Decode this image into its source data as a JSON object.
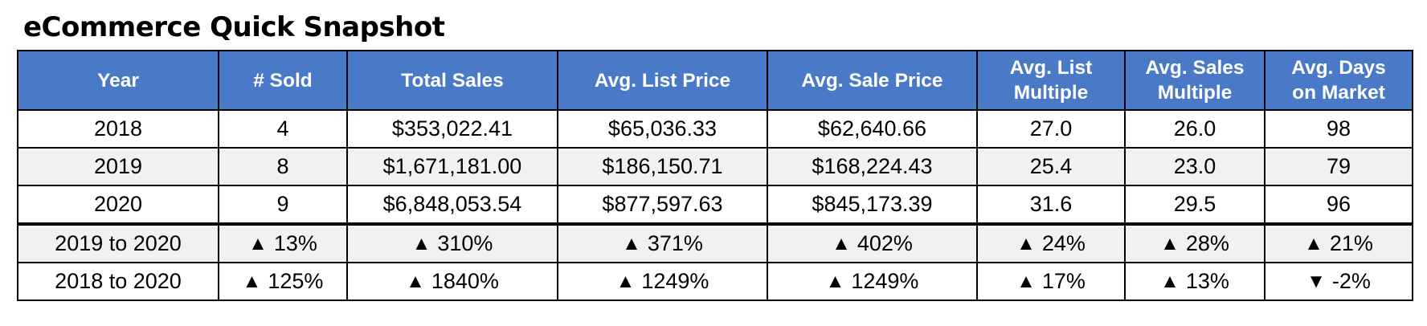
{
  "title": "eCommerce Quick Snapshot",
  "table": {
    "headers": [
      [
        "Year"
      ],
      [
        "# Sold"
      ],
      [
        "Total Sales"
      ],
      [
        "Avg. List Price"
      ],
      [
        "Avg. Sale Price"
      ],
      [
        "Avg. List",
        "Multiple"
      ],
      [
        "Avg. Sales",
        "Multiple"
      ],
      [
        "Avg. Days",
        "on Market"
      ]
    ],
    "rows": [
      [
        "2018",
        "4",
        "$353,022.41",
        "$65,036.33",
        "$62,640.66",
        "27.0",
        "26.0",
        "98"
      ],
      [
        "2019",
        "8",
        "$1,671,181.00",
        "$186,150.71",
        "$168,224.43",
        "25.4",
        "23.0",
        "79"
      ],
      [
        "2020",
        "9",
        "$6,848,053.54",
        "$877,597.63",
        "$845,173.39",
        "31.6",
        "29.5",
        "96"
      ]
    ],
    "change_rows": [
      {
        "label": "2019 to 2020",
        "cells": [
          {
            "arrow": "▲",
            "value": "13%"
          },
          {
            "arrow": "▲",
            "value": "310%"
          },
          {
            "arrow": "▲",
            "value": "371%"
          },
          {
            "arrow": "▲",
            "value": "402%"
          },
          {
            "arrow": "▲",
            "value": "24%"
          },
          {
            "arrow": "▲",
            "value": "28%"
          },
          {
            "arrow": "▲",
            "value": "21%"
          }
        ]
      },
      {
        "label": "2018 to 2020",
        "cells": [
          {
            "arrow": "▲",
            "value": "125%"
          },
          {
            "arrow": "▲",
            "value": "1840%"
          },
          {
            "arrow": "▲",
            "value": "1249%"
          },
          {
            "arrow": "▲",
            "value": "1249%"
          },
          {
            "arrow": "▲",
            "value": "17%"
          },
          {
            "arrow": "▲",
            "value": "13%"
          },
          {
            "arrow": "▼",
            "value": "-2%"
          }
        ]
      }
    ]
  },
  "colors": {
    "header_bg": "#4a7ac7",
    "header_text": "#ffffff",
    "shaded_row_bg": "#f1f1f1",
    "border": "#000000"
  }
}
